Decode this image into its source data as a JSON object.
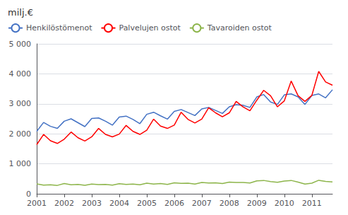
{
  "chart_data": {
    "type": "line",
    "title": "milj.€",
    "x": [
      2001,
      2001.25,
      2001.5,
      2001.75,
      2002,
      2002.25,
      2002.5,
      2002.75,
      2003,
      2003.25,
      2003.5,
      2003.75,
      2004,
      2004.25,
      2004.5,
      2004.75,
      2005,
      2005.25,
      2005.5,
      2005.75,
      2006,
      2006.25,
      2006.5,
      2006.75,
      2007,
      2007.25,
      2007.5,
      2007.75,
      2008,
      2008.25,
      2008.5,
      2008.75,
      2009,
      2009.25,
      2009.5,
      2009.75,
      2010,
      2010.25,
      2010.5,
      2010.75,
      2011,
      2011.25,
      2011.5,
      2011.75
    ],
    "xlim": [
      2001,
      2011.75
    ],
    "xticks": [
      2001,
      2002,
      2003,
      2004,
      2005,
      2006,
      2007,
      2008,
      2009,
      2010,
      2011
    ],
    "ylim": [
      0,
      5000
    ],
    "yticks": [
      0,
      {
        "value": 1000,
        "label": "1 000"
      },
      {
        "value": 2000,
        "label": "2 000"
      },
      {
        "value": 3000,
        "label": "3 000"
      },
      {
        "value": 4000,
        "label": "4 000"
      },
      {
        "value": 5000,
        "label": "5 000"
      }
    ],
    "grid": true,
    "legend": "upper left",
    "series": [
      {
        "name": "Henkilöstömenot",
        "color": "#4472C4",
        "values": [
          2080,
          2380,
          2250,
          2180,
          2420,
          2500,
          2370,
          2240,
          2510,
          2530,
          2420,
          2290,
          2560,
          2590,
          2480,
          2340,
          2650,
          2720,
          2600,
          2490,
          2750,
          2810,
          2710,
          2610,
          2830,
          2880,
          2780,
          2680,
          2900,
          2970,
          2950,
          2880,
          3230,
          3310,
          3060,
          2980,
          3300,
          3330,
          3230,
          2980,
          3280,
          3330,
          3200,
          3470
        ]
      },
      {
        "name": "Palvelujen ostot",
        "color": "#FF0000",
        "values": [
          1640,
          1980,
          1770,
          1680,
          1820,
          2060,
          1870,
          1760,
          1900,
          2180,
          1980,
          1900,
          1990,
          2280,
          2080,
          1980,
          2120,
          2490,
          2260,
          2180,
          2290,
          2720,
          2480,
          2360,
          2490,
          2870,
          2700,
          2570,
          2700,
          3080,
          2900,
          2770,
          3120,
          3450,
          3270,
          2900,
          3100,
          3760,
          3270,
          3080,
          3280,
          4080,
          3730,
          3620
        ]
      },
      {
        "name": "Tavaroiden ostot",
        "color": "#8DB54B",
        "values": [
          330,
          290,
          300,
          280,
          340,
          300,
          310,
          285,
          325,
          305,
          315,
          290,
          335,
          315,
          325,
          300,
          355,
          325,
          340,
          315,
          365,
          345,
          355,
          325,
          375,
          360,
          365,
          340,
          390,
          375,
          380,
          360,
          430,
          445,
          405,
          385,
          425,
          445,
          390,
          325,
          355,
          450,
          415,
          395
        ]
      }
    ]
  }
}
